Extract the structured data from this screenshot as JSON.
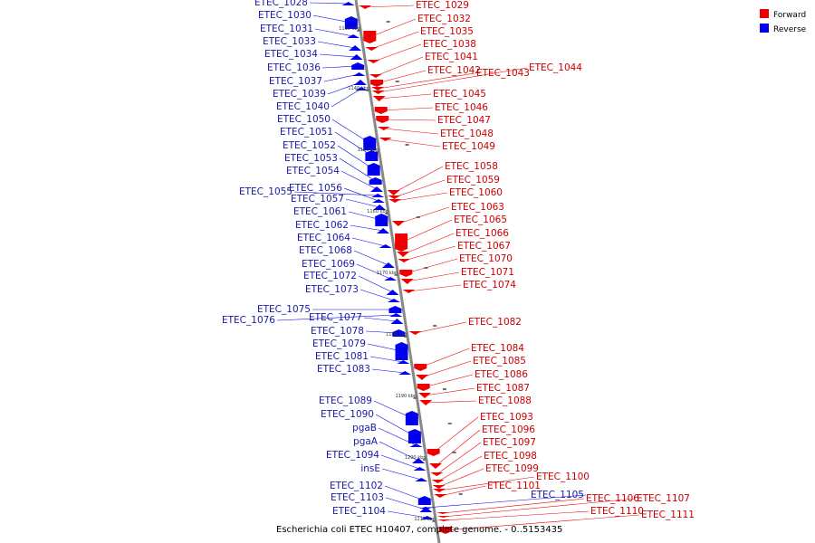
{
  "caption": "Escherichia coli ETEC H10407, complete genome. - 0..5153435",
  "colors": {
    "forward": "#ee0000",
    "reverse": "#0000ee",
    "forward_label": "#cc0000",
    "reverse_label": "#1a1aa6",
    "backbone": "#999999"
  },
  "legend": [
    {
      "label": "Forward",
      "color": "#ee0000"
    },
    {
      "label": "Reverse",
      "color": "#0000ee"
    }
  ],
  "ticks": [
    {
      "kbp": 1130,
      "label": "1130 kbp"
    },
    {
      "kbp": 1140,
      "label": "1140 kbp"
    },
    {
      "kbp": 1150,
      "label": "1150 kbp"
    },
    {
      "kbp": 1160,
      "label": "1160 kbp"
    },
    {
      "kbp": 1170,
      "label": "1170 kbp"
    },
    {
      "kbp": 1180,
      "label": "1180 kbp"
    },
    {
      "kbp": 1190,
      "label": "1190 kbp"
    },
    {
      "kbp": 1200,
      "label": "1200 kbp"
    },
    {
      "kbp": 1210,
      "label": "1210 kbp"
    }
  ],
  "reverse_genes": [
    "ETEC_1028",
    "ETEC_1030",
    "ETEC_1031",
    "ETEC_1033",
    "ETEC_1034",
    "ETEC_1036",
    "ETEC_1037",
    "ETEC_1039",
    "ETEC_1040",
    "ETEC_1050",
    "ETEC_1051",
    "ETEC_1052",
    "ETEC_1053",
    "ETEC_1054",
    "ETEC_1055",
    "ETEC_1056",
    "ETEC_1057",
    "ETEC_1061",
    "ETEC_1062",
    "ETEC_1064",
    "ETEC_1068",
    "ETEC_1069",
    "ETEC_1072",
    "ETEC_1073",
    "ETEC_1075",
    "ETEC_1076",
    "ETEC_1077",
    "ETEC_1078",
    "ETEC_1079",
    "ETEC_1081",
    "ETEC_1083",
    "ETEC_1089",
    "ETEC_1090",
    "pgaB",
    "pgaA",
    "ETEC_1094",
    "insE",
    "ETEC_1102",
    "ETEC_1103",
    "ETEC_1104",
    "ETEC_1105"
  ],
  "forward_genes": [
    "ETEC_1029",
    "ETEC_1032",
    "ETEC_1035",
    "ETEC_1038",
    "ETEC_1041",
    "ETEC_1042",
    "ETEC_1043",
    "ETEC_1044",
    "ETEC_1045",
    "ETEC_1046",
    "ETEC_1047",
    "ETEC_1048",
    "ETEC_1049",
    "ETEC_1058",
    "ETEC_1059",
    "ETEC_1060",
    "ETEC_1063",
    "ETEC_1065",
    "ETEC_1066",
    "ETEC_1067",
    "ETEC_1070",
    "ETEC_1071",
    "ETEC_1074",
    "ETEC_1082",
    "ETEC_1084",
    "ETEC_1085",
    "ETEC_1086",
    "ETEC_1087",
    "ETEC_1088",
    "ETEC_1093",
    "ETEC_1096",
    "ETEC_1097",
    "ETEC_1098",
    "ETEC_1099",
    "ETEC_1100",
    "ETEC_1101",
    "ETEC_1106",
    "ETEC_1107",
    "ETEC_1110",
    "ETEC_1111"
  ]
}
